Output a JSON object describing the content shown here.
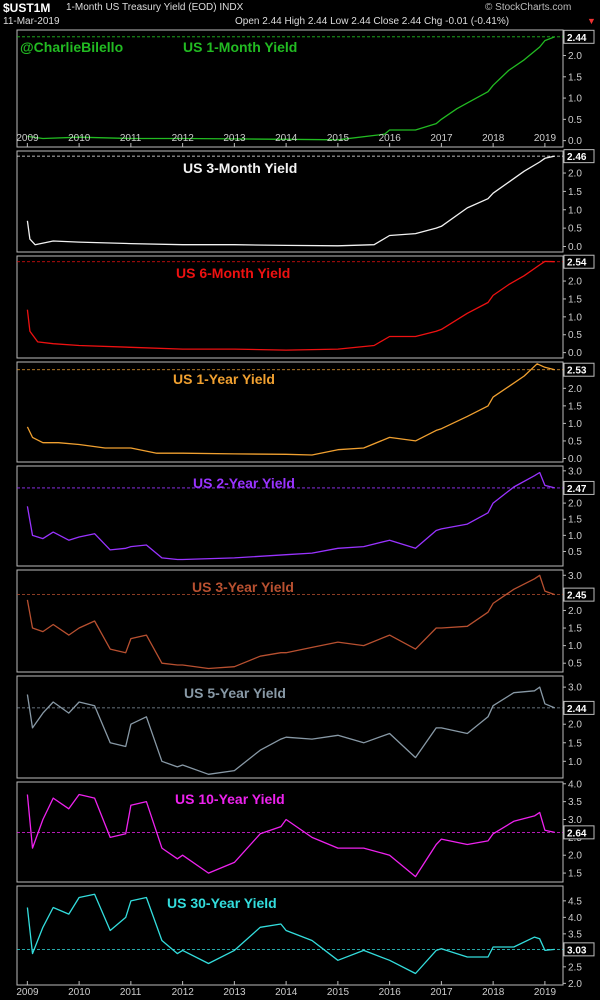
{
  "header": {
    "symbol": "$UST1M",
    "name": "1-Month US Treasury Yield (EOD)",
    "exchange": "INDX",
    "date": "11-Mar-2019",
    "quote": "Open 2.44 High 2.44 Low 2.44 Close 2.44 Chg -0.01 (-0.41%)",
    "source": "© StockCharts.com",
    "arrow": "▼"
  },
  "watermark": "@CharlieBilello",
  "x_axis": {
    "labels": [
      "2009",
      "2010",
      "2011",
      "2012",
      "2013",
      "2014",
      "2015",
      "2016",
      "2017",
      "2018",
      "2019"
    ]
  },
  "chart_data": [
    {
      "type": "line",
      "title": "US 1-Month Yield",
      "color": "#22bb22",
      "last_label": "2.44",
      "last_value": 2.44,
      "ylim": [
        -0.15,
        2.6
      ],
      "yticks": [
        "0.0",
        "0.5",
        "1.0",
        "1.5",
        "2.0"
      ],
      "ytick_values": [
        0,
        0.5,
        1,
        1.5,
        2
      ],
      "x": [
        2009.0,
        2009.3,
        2010.0,
        2011.0,
        2012.0,
        2013.0,
        2014.0,
        2015.0,
        2015.9,
        2016.0,
        2016.5,
        2016.9,
        2017.0,
        2017.3,
        2017.6,
        2017.9,
        2018.0,
        2018.3,
        2018.6,
        2018.9,
        2019.0,
        2019.19
      ],
      "y": [
        0.1,
        0.05,
        0.08,
        0.05,
        0.05,
        0.04,
        0.03,
        0.02,
        0.15,
        0.25,
        0.25,
        0.4,
        0.5,
        0.75,
        0.95,
        1.15,
        1.3,
        1.65,
        1.9,
        2.2,
        2.35,
        2.44
      ]
    },
    {
      "type": "line",
      "title": "US 3-Month Yield",
      "color": "#f2f2f2",
      "last_label": "2.46",
      "last_value": 2.46,
      "ylim": [
        -0.15,
        2.6
      ],
      "yticks": [
        "0.0",
        "0.5",
        "1.0",
        "1.5",
        "2.0"
      ],
      "ytick_values": [
        0,
        0.5,
        1,
        1.5,
        2
      ],
      "x": [
        2009.0,
        2009.05,
        2009.15,
        2009.5,
        2010.0,
        2011.0,
        2012.0,
        2013.0,
        2014.0,
        2015.0,
        2015.7,
        2016.0,
        2016.5,
        2016.9,
        2017.0,
        2017.5,
        2017.9,
        2018.0,
        2018.3,
        2018.6,
        2018.9,
        2019.0,
        2019.19
      ],
      "y": [
        0.7,
        0.2,
        0.05,
        0.15,
        0.12,
        0.08,
        0.05,
        0.05,
        0.03,
        0.02,
        0.05,
        0.3,
        0.35,
        0.5,
        0.55,
        1.05,
        1.3,
        1.45,
        1.75,
        2.05,
        2.3,
        2.4,
        2.46
      ]
    },
    {
      "type": "line",
      "title": "US 6-Month Yield",
      "color": "#ee1111",
      "last_label": "2.54",
      "last_value": 2.54,
      "ylim": [
        -0.15,
        2.7
      ],
      "yticks": [
        "0.0",
        "0.5",
        "1.0",
        "1.5",
        "2.0",
        "2.5"
      ],
      "ytick_values": [
        0,
        0.5,
        1,
        1.5,
        2,
        2.5
      ],
      "x": [
        2009.0,
        2009.05,
        2009.2,
        2009.5,
        2010.0,
        2011.0,
        2012.0,
        2013.0,
        2014.0,
        2015.0,
        2015.7,
        2016.0,
        2016.5,
        2016.9,
        2017.0,
        2017.5,
        2017.9,
        2018.0,
        2018.3,
        2018.6,
        2018.9,
        2019.0,
        2019.19
      ],
      "y": [
        1.2,
        0.6,
        0.3,
        0.25,
        0.2,
        0.15,
        0.1,
        0.1,
        0.07,
        0.1,
        0.2,
        0.45,
        0.45,
        0.6,
        0.65,
        1.1,
        1.4,
        1.6,
        1.9,
        2.15,
        2.45,
        2.55,
        2.54
      ]
    },
    {
      "type": "line",
      "title": "US 1-Year Yield",
      "color": "#f0a030",
      "last_label": "2.53",
      "last_value": 2.53,
      "ylim": [
        -0.1,
        2.75
      ],
      "yticks": [
        "0.0",
        "0.5",
        "1.0",
        "1.5",
        "2.0",
        "2.5"
      ],
      "ytick_values": [
        0,
        0.5,
        1,
        1.5,
        2,
        2.5
      ],
      "x": [
        2009.0,
        2009.1,
        2009.3,
        2009.6,
        2010.0,
        2010.5,
        2011.0,
        2011.5,
        2012.0,
        2013.0,
        2014.0,
        2014.5,
        2015.0,
        2015.5,
        2016.0,
        2016.5,
        2016.9,
        2017.0,
        2017.5,
        2017.9,
        2018.0,
        2018.3,
        2018.6,
        2018.85,
        2019.0,
        2019.19
      ],
      "y": [
        0.9,
        0.6,
        0.45,
        0.45,
        0.4,
        0.3,
        0.3,
        0.15,
        0.15,
        0.13,
        0.12,
        0.1,
        0.25,
        0.3,
        0.6,
        0.5,
        0.8,
        0.85,
        1.2,
        1.5,
        1.75,
        2.05,
        2.35,
        2.7,
        2.6,
        2.53
      ]
    },
    {
      "type": "line",
      "title": "US 2-Year Yield",
      "color": "#9933ff",
      "last_label": "2.47",
      "last_value": 2.47,
      "ylim": [
        0.05,
        3.15
      ],
      "yticks": [
        "0.5",
        "1.0",
        "1.5",
        "2.0",
        "2.5",
        "3.0"
      ],
      "ytick_values": [
        0.5,
        1,
        1.5,
        2,
        2.5,
        3
      ],
      "x": [
        2009.0,
        2009.1,
        2009.3,
        2009.5,
        2009.8,
        2010.0,
        2010.3,
        2010.6,
        2010.9,
        2011.0,
        2011.3,
        2011.6,
        2011.9,
        2012.0,
        2013.0,
        2014.0,
        2014.5,
        2015.0,
        2015.5,
        2016.0,
        2016.5,
        2016.9,
        2017.0,
        2017.5,
        2017.9,
        2018.0,
        2018.4,
        2018.8,
        2018.9,
        2019.0,
        2019.19
      ],
      "y": [
        1.9,
        1.0,
        0.9,
        1.1,
        0.85,
        0.95,
        1.05,
        0.55,
        0.6,
        0.65,
        0.7,
        0.3,
        0.25,
        0.25,
        0.3,
        0.4,
        0.45,
        0.6,
        0.65,
        0.85,
        0.6,
        1.15,
        1.2,
        1.35,
        1.7,
        2.0,
        2.5,
        2.85,
        2.95,
        2.55,
        2.47
      ]
    },
    {
      "type": "line",
      "title": "US 3-Year Yield",
      "color": "#b85030",
      "last_label": "2.45",
      "last_value": 2.45,
      "ylim": [
        0.25,
        3.15
      ],
      "yticks": [
        "0.5",
        "1.0",
        "1.5",
        "2.0",
        "2.5",
        "3.0"
      ],
      "ytick_values": [
        0.5,
        1,
        1.5,
        2,
        2.5,
        3
      ],
      "x": [
        2009.0,
        2009.1,
        2009.3,
        2009.5,
        2009.8,
        2010.0,
        2010.3,
        2010.6,
        2010.9,
        2011.0,
        2011.3,
        2011.6,
        2011.9,
        2012.0,
        2012.5,
        2013.0,
        2013.5,
        2013.9,
        2014.0,
        2014.5,
        2015.0,
        2015.5,
        2016.0,
        2016.5,
        2016.9,
        2017.0,
        2017.5,
        2017.9,
        2018.0,
        2018.4,
        2018.8,
        2018.9,
        2019.0,
        2019.19
      ],
      "y": [
        2.3,
        1.5,
        1.4,
        1.6,
        1.3,
        1.5,
        1.7,
        0.9,
        0.8,
        1.2,
        1.3,
        0.5,
        0.45,
        0.45,
        0.35,
        0.4,
        0.7,
        0.8,
        0.8,
        0.95,
        1.1,
        1.0,
        1.3,
        0.9,
        1.5,
        1.5,
        1.55,
        1.95,
        2.2,
        2.6,
        2.9,
        3.0,
        2.55,
        2.45
      ]
    },
    {
      "type": "line",
      "title": "US 5-Year Yield",
      "color": "#8899a6",
      "last_label": "2.44",
      "last_value": 2.44,
      "ylim": [
        0.55,
        3.3
      ],
      "yticks": [
        "1.0",
        "1.5",
        "2.0",
        "2.5",
        "3.0"
      ],
      "ytick_values": [
        1,
        1.5,
        2,
        2.5,
        3
      ],
      "x": [
        2009.0,
        2009.1,
        2009.3,
        2009.5,
        2009.8,
        2010.0,
        2010.3,
        2010.6,
        2010.9,
        2011.0,
        2011.3,
        2011.6,
        2011.9,
        2012.0,
        2012.5,
        2013.0,
        2013.5,
        2013.9,
        2014.0,
        2014.5,
        2015.0,
        2015.5,
        2016.0,
        2016.5,
        2016.9,
        2017.0,
        2017.5,
        2017.9,
        2018.0,
        2018.4,
        2018.8,
        2018.9,
        2019.0,
        2019.19
      ],
      "y": [
        2.8,
        1.9,
        2.3,
        2.6,
        2.3,
        2.6,
        2.5,
        1.5,
        1.4,
        2.0,
        2.2,
        1.0,
        0.85,
        0.9,
        0.65,
        0.75,
        1.3,
        1.6,
        1.65,
        1.6,
        1.7,
        1.5,
        1.75,
        1.1,
        1.9,
        1.9,
        1.75,
        2.2,
        2.5,
        2.85,
        2.9,
        3.0,
        2.55,
        2.44
      ]
    },
    {
      "type": "line",
      "title": "US 10-Year Yield",
      "color": "#ee22ee",
      "last_label": "2.64",
      "last_value": 2.64,
      "ylim": [
        1.25,
        4.05
      ],
      "yticks": [
        "1.5",
        "2.0",
        "2.5",
        "3.0",
        "3.5",
        "4.0"
      ],
      "ytick_values": [
        1.5,
        2,
        2.5,
        3,
        3.5,
        4
      ],
      "x": [
        2009.0,
        2009.1,
        2009.3,
        2009.5,
        2009.8,
        2010.0,
        2010.3,
        2010.6,
        2010.9,
        2011.0,
        2011.3,
        2011.6,
        2011.9,
        2012.0,
        2012.5,
        2013.0,
        2013.5,
        2013.9,
        2014.0,
        2014.5,
        2015.0,
        2015.5,
        2016.0,
        2016.5,
        2016.9,
        2017.0,
        2017.5,
        2017.9,
        2018.0,
        2018.4,
        2018.8,
        2018.9,
        2019.0,
        2019.19
      ],
      "y": [
        3.7,
        2.2,
        3.0,
        3.6,
        3.3,
        3.7,
        3.6,
        2.5,
        2.6,
        3.4,
        3.5,
        2.2,
        1.9,
        2.0,
        1.5,
        1.8,
        2.6,
        2.8,
        3.0,
        2.5,
        2.2,
        2.2,
        2.0,
        1.4,
        2.3,
        2.45,
        2.3,
        2.4,
        2.6,
        2.95,
        3.1,
        3.2,
        2.7,
        2.64
      ]
    },
    {
      "type": "line",
      "title": "US 30-Year Yield",
      "color": "#33dddd",
      "last_label": "3.03",
      "last_value": 3.03,
      "ylim": [
        1.95,
        4.95
      ],
      "yticks": [
        "2.0",
        "2.5",
        "3.0",
        "3.5",
        "4.0",
        "4.5"
      ],
      "ytick_values": [
        2,
        2.5,
        3,
        3.5,
        4,
        4.5
      ],
      "x": [
        2009.0,
        2009.1,
        2009.3,
        2009.5,
        2009.8,
        2010.0,
        2010.3,
        2010.6,
        2010.9,
        2011.0,
        2011.3,
        2011.6,
        2011.9,
        2012.0,
        2012.5,
        2013.0,
        2013.5,
        2013.9,
        2014.0,
        2014.5,
        2015.0,
        2015.5,
        2016.0,
        2016.5,
        2016.9,
        2017.0,
        2017.5,
        2017.9,
        2018.0,
        2018.4,
        2018.8,
        2018.9,
        2019.0,
        2019.19
      ],
      "y": [
        4.3,
        2.9,
        3.7,
        4.3,
        4.1,
        4.6,
        4.7,
        3.6,
        4.0,
        4.5,
        4.6,
        3.3,
        2.9,
        3.0,
        2.6,
        3.0,
        3.7,
        3.8,
        3.6,
        3.3,
        2.7,
        3.0,
        2.7,
        2.3,
        3.0,
        3.05,
        2.8,
        2.8,
        3.1,
        3.1,
        3.4,
        3.35,
        3.0,
        3.03
      ]
    }
  ]
}
